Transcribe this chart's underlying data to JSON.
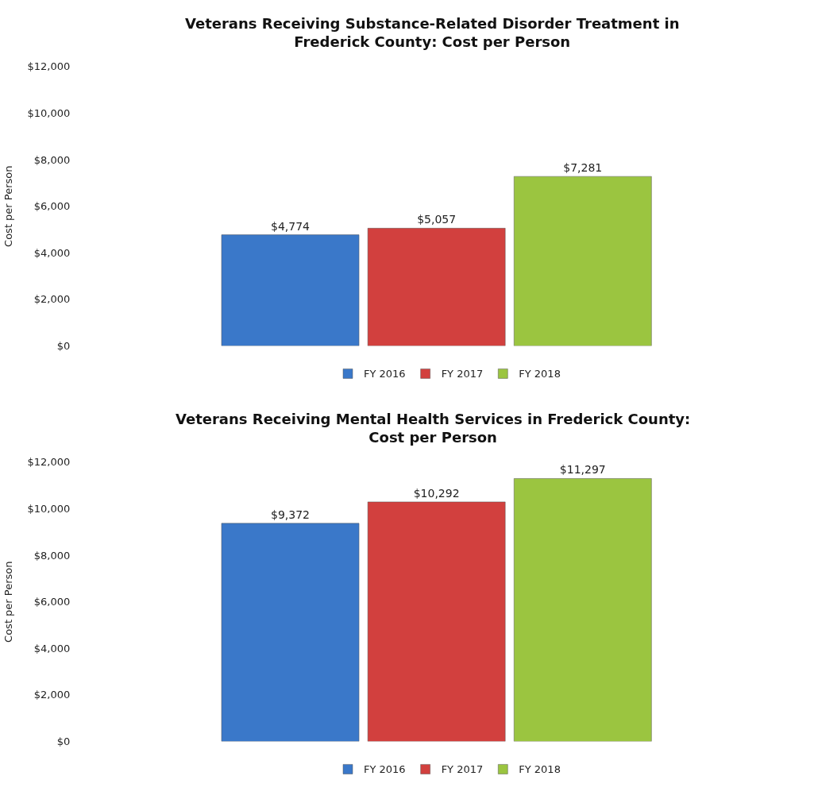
{
  "chart_data": [
    {
      "type": "bar",
      "title": "Veterans Receiving Substance-Related Disorder Treatment in\nFrederick County: Cost per Person",
      "ylabel": "Cost per Person",
      "categories": [
        null
      ],
      "series": [
        {
          "name": "FY 2016",
          "color": "#3a78c9",
          "values": [
            4774
          ],
          "value_labels": [
            "$4,774"
          ]
        },
        {
          "name": "FY 2017",
          "color": "#d2403e",
          "values": [
            5057
          ],
          "value_labels": [
            "$5,057"
          ]
        },
        {
          "name": "FY 2018",
          "color": "#9bc540",
          "values": [
            7281
          ],
          "value_labels": [
            "$7,281"
          ]
        }
      ],
      "ylim": [
        0,
        12000
      ],
      "yticks": [
        {
          "value": 0,
          "label": "$0"
        },
        {
          "value": 2000,
          "label": "$2,000"
        },
        {
          "value": 4000,
          "label": "$4,000"
        },
        {
          "value": 6000,
          "label": "$6,000"
        },
        {
          "value": 8000,
          "label": "$8,000"
        },
        {
          "value": 10000,
          "label": "$10,000"
        },
        {
          "value": 12000,
          "label": "$12,000"
        }
      ],
      "legend": "bottom"
    },
    {
      "type": "bar",
      "title": "Veterans Receiving Mental Health Services in Frederick County:\nCost per Person",
      "ylabel": "Cost per Person",
      "categories": [
        null
      ],
      "series": [
        {
          "name": "FY 2016",
          "color": "#3a78c9",
          "values": [
            9372
          ],
          "value_labels": [
            "$9,372"
          ]
        },
        {
          "name": "FY 2017",
          "color": "#d2403e",
          "values": [
            10292
          ],
          "value_labels": [
            "$10,292"
          ]
        },
        {
          "name": "FY 2018",
          "color": "#9bc540",
          "values": [
            11297
          ],
          "value_labels": [
            "$11,297"
          ]
        }
      ],
      "ylim": [
        0,
        12000
      ],
      "yticks": [
        {
          "value": 0,
          "label": "$0"
        },
        {
          "value": 2000,
          "label": "$2,000"
        },
        {
          "value": 4000,
          "label": "$4,000"
        },
        {
          "value": 6000,
          "label": "$6,000"
        },
        {
          "value": 8000,
          "label": "$8,000"
        },
        {
          "value": 10000,
          "label": "$10,000"
        },
        {
          "value": 12000,
          "label": "$12,000"
        }
      ],
      "legend": "bottom"
    }
  ]
}
